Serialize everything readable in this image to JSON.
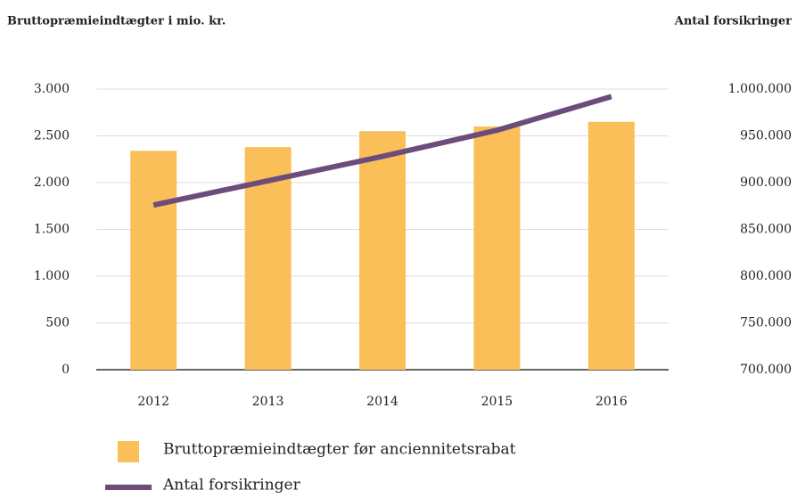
{
  "chart_data": {
    "type": "bar",
    "y_label": "Bruttopræmieindtægter i mio. kr.",
    "y2_label": "Antal forsikringer",
    "categories": [
      "2012",
      "2013",
      "2014",
      "2015",
      "2016"
    ],
    "series": [
      {
        "name": "Bruttopræmieindtægter før anciennitetsrabat",
        "type": "bar",
        "color": "#fbbf5a",
        "values": [
          2340,
          2380,
          2550,
          2600,
          2650
        ]
      },
      {
        "name": "Antal forsikringer",
        "type": "line",
        "axis": "y2",
        "color": "#6b4c7a",
        "values": [
          876000,
          902000,
          928000,
          956000,
          992000
        ]
      }
    ],
    "ylim": [
      0,
      3000
    ],
    "yticks": [
      0,
      500,
      {
        "value": 1000,
        "label": "1.000"
      },
      {
        "value": 1500,
        "label": "1.500"
      },
      {
        "value": 2000,
        "label": "2.000"
      },
      {
        "value": 2500,
        "label": "2.500"
      },
      {
        "value": 3000,
        "label": "3.000"
      }
    ],
    "y2lim": [
      700000,
      1000000
    ],
    "y2ticks": [
      {
        "value": 700000,
        "label": "700.000"
      },
      {
        "value": 750000,
        "label": "750.000"
      },
      {
        "value": 800000,
        "label": "800.000"
      },
      {
        "value": 850000,
        "label": "850.000"
      },
      {
        "value": 900000,
        "label": "900.000"
      },
      {
        "value": 950000,
        "label": "950.000"
      },
      {
        "value": 1000000,
        "label": "1.000.000"
      }
    ],
    "grid": true
  }
}
